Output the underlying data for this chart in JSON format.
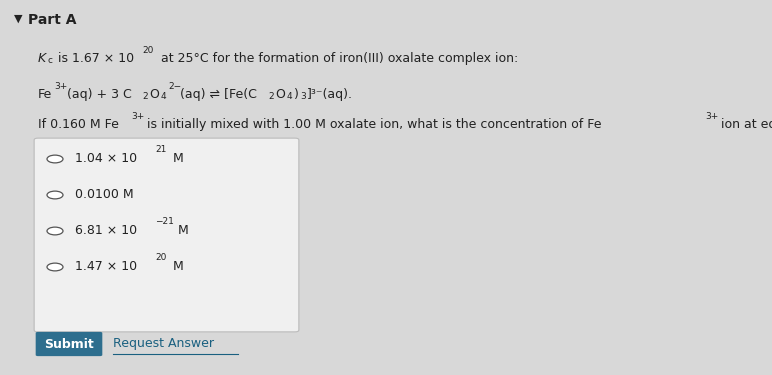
{
  "background_color": "#d8d8d8",
  "box_color": "#f0f0f0",
  "text_color": "#222222",
  "submit_color": "#2d6e8e",
  "submit_text": "Submit",
  "request_answer_text": "Request Answer",
  "part_label": "Part A",
  "fs": 9.0,
  "fs_small": 6.5
}
